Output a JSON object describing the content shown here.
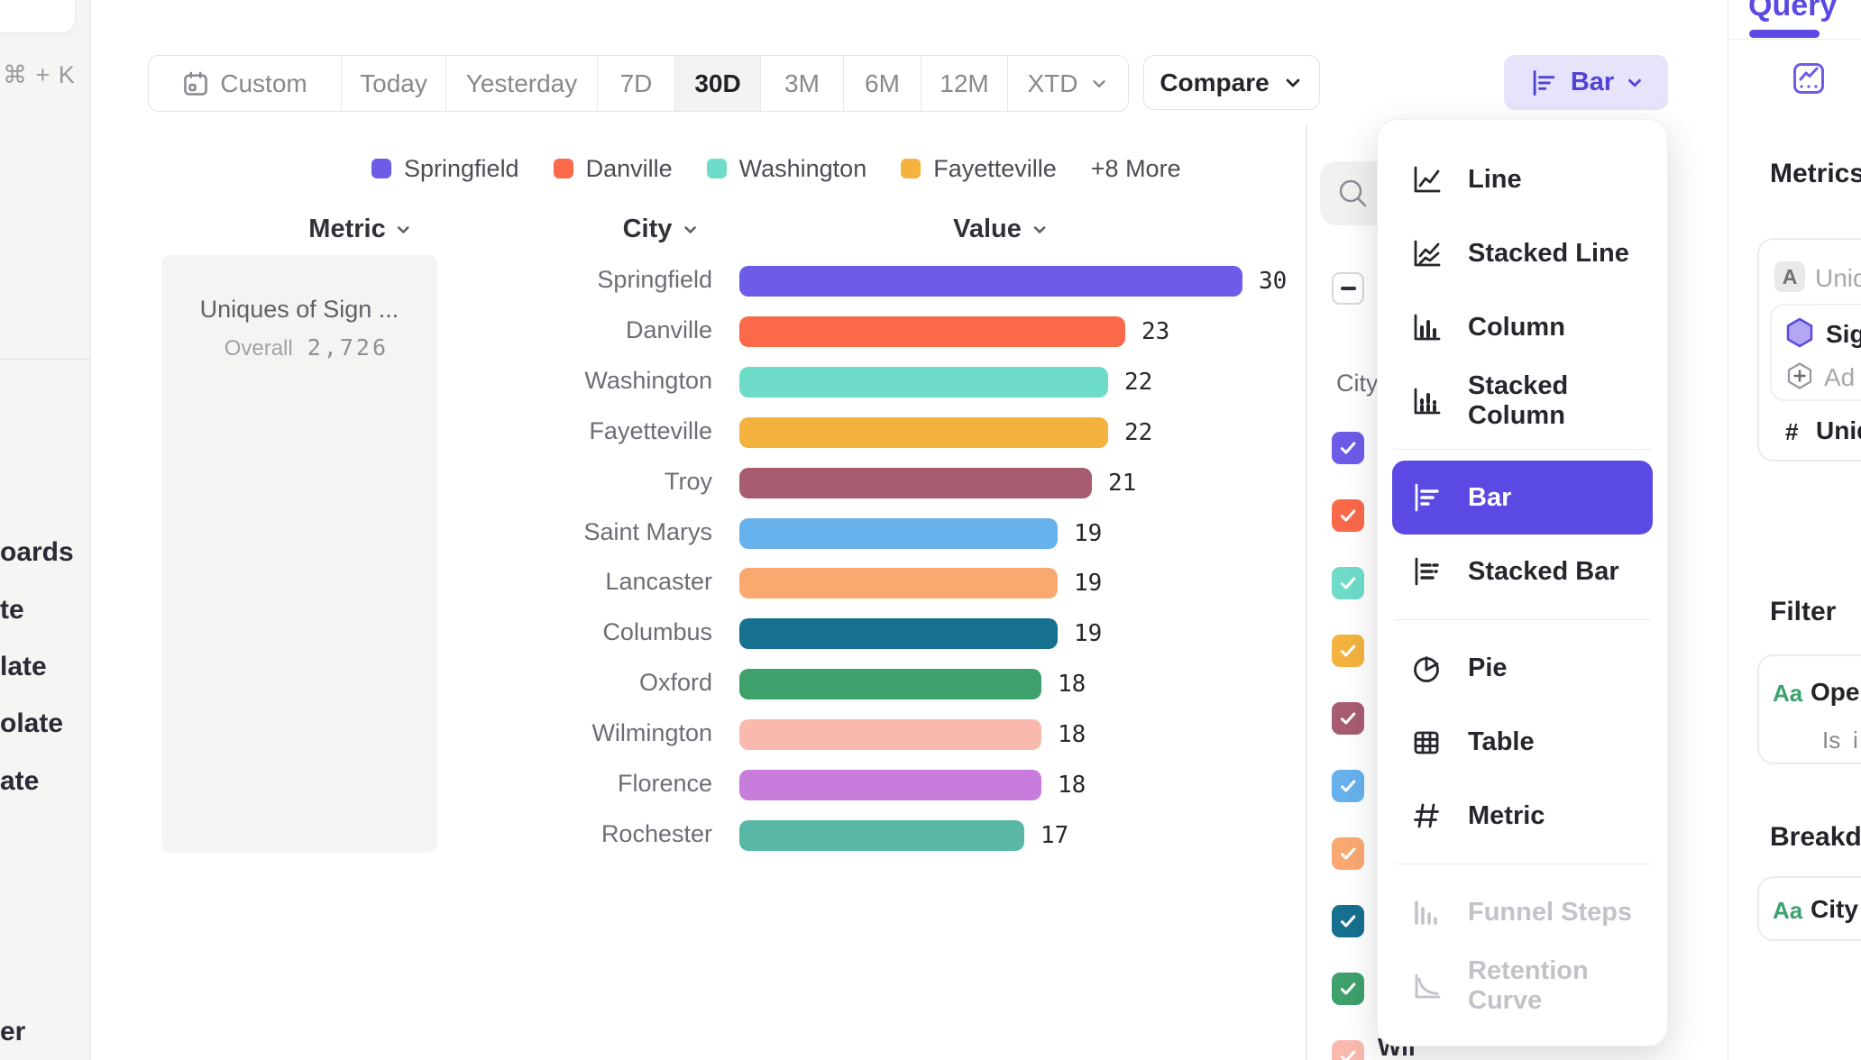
{
  "accent": "#5A49E3",
  "left_rail": {
    "shortcut": "⌘ + K",
    "fragments": [
      "oards",
      "te",
      "late",
      "olate",
      "ate",
      "er"
    ]
  },
  "toolbar": {
    "ranges": [
      {
        "label": "Custom",
        "icon": true
      },
      {
        "label": "Today"
      },
      {
        "label": "Yesterday"
      },
      {
        "label": "7D"
      },
      {
        "label": "30D"
      },
      {
        "label": "3M"
      },
      {
        "label": "6M"
      },
      {
        "label": "12M"
      },
      {
        "label": "XTD",
        "chevron": true
      }
    ],
    "selected": "30D",
    "compare_label": "Compare",
    "chart_type_label": "Bar"
  },
  "legend": {
    "items": [
      {
        "label": "Springfield",
        "color": "#6C5CE7"
      },
      {
        "label": "Danville",
        "color": "#F9694A"
      },
      {
        "label": "Washington",
        "color": "#6EDCC8"
      },
      {
        "label": "Fayetteville",
        "color": "#F3B33E"
      }
    ],
    "more_label": "+8 More"
  },
  "chart_data": {
    "type": "bar",
    "orientation": "horizontal",
    "columns": {
      "metric": "Metric",
      "city": "City",
      "value": "Value"
    },
    "metric_title": "Uniques of Sign ...",
    "overall_label": "Overall",
    "overall_value": "2,726",
    "categories": [
      "Springfield",
      "Danville",
      "Washington",
      "Fayetteville",
      "Troy",
      "Saint Marys",
      "Lancaster",
      "Columbus",
      "Oxford",
      "Wilmington",
      "Florence",
      "Rochester"
    ],
    "values": [
      30,
      23,
      22,
      22,
      21,
      19,
      19,
      19,
      18,
      18,
      18,
      17
    ],
    "colors": [
      "#6C5CE7",
      "#F9694A",
      "#6EDCC8",
      "#F3B33E",
      "#A85C70",
      "#67B1EC",
      "#F9A870",
      "#16708F",
      "#3EA06B",
      "#F9B9AE",
      "#C77CDB",
      "#58B8A5"
    ],
    "xlim": [
      0,
      30
    ]
  },
  "city_filter": {
    "group_label": "City",
    "select_all_state": "indeterminate",
    "row_colors": [
      "#6C5CE7",
      "#F9694A",
      "#6EDCC8",
      "#F3B33E",
      "#A85C70",
      "#67B1EC",
      "#F9A870",
      "#16708F",
      "#3EA06B",
      "#F9B9AE"
    ],
    "partial_row_label": "Wil"
  },
  "chart_menu": {
    "groups": [
      {
        "items": [
          {
            "label": "Line",
            "icon": "line-chart-icon"
          },
          {
            "label": "Stacked Line",
            "icon": "stacked-line-icon"
          },
          {
            "label": "Column",
            "icon": "column-chart-icon"
          },
          {
            "label": "Stacked Column",
            "icon": "stacked-column-icon"
          }
        ]
      },
      {
        "items": [
          {
            "label": "Bar",
            "icon": "bar-chart-icon",
            "selected": true
          },
          {
            "label": "Stacked Bar",
            "icon": "stacked-bar-icon"
          }
        ]
      },
      {
        "items": [
          {
            "label": "Pie",
            "icon": "pie-chart-icon"
          },
          {
            "label": "Table",
            "icon": "table-icon"
          },
          {
            "label": "Metric",
            "icon": "metric-icon"
          }
        ]
      },
      {
        "items": [
          {
            "label": "Funnel Steps",
            "icon": "funnel-steps-icon",
            "disabled": true
          },
          {
            "label": "Retention Curve",
            "icon": "retention-curve-icon",
            "disabled": true
          }
        ]
      }
    ]
  },
  "right_panel": {
    "tab_label": "Query",
    "metrics_heading": "Metrics",
    "metric_badge": "A",
    "metric_label": "Uniq",
    "event_label": "Sig",
    "add_label": "Ad",
    "agg_prefix": "#",
    "agg_label": "Uniqu",
    "filter_heading": "Filter",
    "filter_badge": "Aa",
    "filter_label": "Ope",
    "filter_operator": "Is",
    "filter_value": "i",
    "breakdown_heading": "Breakdo",
    "breakdown_badge": "Aa",
    "breakdown_label": "City"
  }
}
